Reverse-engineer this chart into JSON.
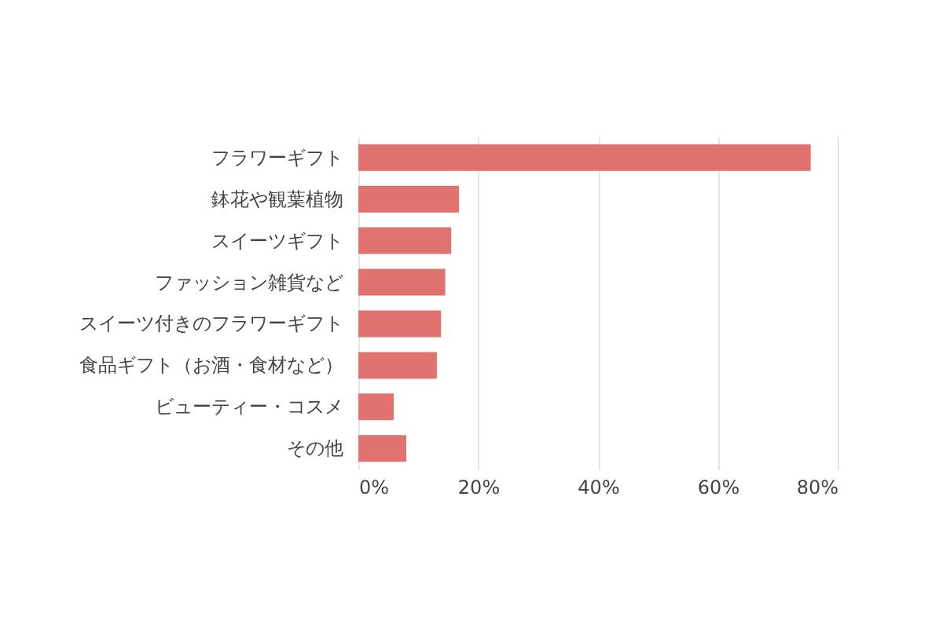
{
  "chart_data": {
    "type": "bar",
    "orientation": "horizontal",
    "categories": [
      "フラワーギフト",
      "鉢花や観葉植物",
      "スイーツギフト",
      "ファッション雑貨など",
      "スイーツ付きのフラワーギフト",
      "食品ギフト（お酒・食材など）",
      "ビューティー・コスメ",
      "その他"
    ],
    "values": [
      75.5,
      16.8,
      15.5,
      14.5,
      13.8,
      13.1,
      5.9,
      8.0
    ],
    "color": "#e07370",
    "xlim": [
      0,
      80
    ],
    "xticks": [
      {
        "value": 0,
        "label": "0%"
      },
      {
        "value": 20,
        "label": "20%"
      },
      {
        "value": 40,
        "label": "40%"
      },
      {
        "value": 60,
        "label": "60%"
      },
      {
        "value": 80,
        "label": "80%"
      }
    ],
    "grid": "x"
  }
}
